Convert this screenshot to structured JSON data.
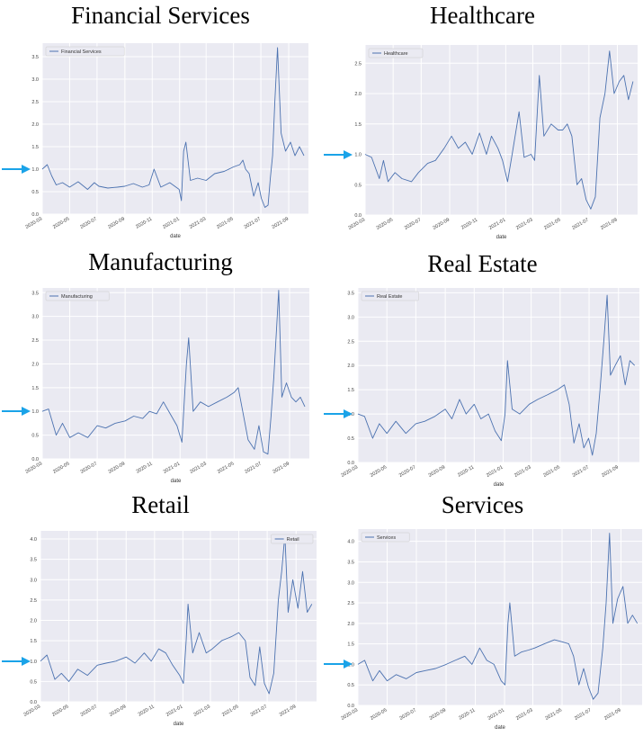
{
  "charts": [
    {
      "type": "line",
      "title": "Financial Services",
      "xlabel": "date",
      "ylabel": "",
      "legend": "Financial Services",
      "legend_position": "top-left",
      "ylim": [
        0,
        3.8
      ],
      "yticks": [
        "0.0",
        "0.5",
        "1.0",
        "1.5",
        "2.0",
        "2.5",
        "3.0",
        "3.5"
      ],
      "xlim": [
        "2020-03-01",
        "2021-10-15"
      ],
      "xticks": [
        "2020-03",
        "2020-05",
        "2020-07",
        "2020-09",
        "2020-11",
        "2021-01",
        "2021-03",
        "2021-05",
        "2021-07",
        "2021-09"
      ],
      "series": [
        {
          "name": "Financial Services",
          "x": [
            "2020-03-01",
            "2020-03-12",
            "2020-03-22",
            "2020-04-01",
            "2020-04-15",
            "2020-05-01",
            "2020-05-20",
            "2020-06-10",
            "2020-06-25",
            "2020-07-05",
            "2020-07-25",
            "2020-08-15",
            "2020-09-01",
            "2020-09-20",
            "2020-10-10",
            "2020-10-25",
            "2020-11-05",
            "2020-11-20",
            "2020-12-10",
            "2020-12-31",
            "2021-01-05",
            "2021-01-10",
            "2021-01-15",
            "2021-01-25",
            "2021-02-10",
            "2021-03-01",
            "2021-03-20",
            "2021-04-10",
            "2021-05-01",
            "2021-05-15",
            "2021-05-22",
            "2021-05-28",
            "2021-06-05",
            "2021-06-15",
            "2021-06-25",
            "2021-07-02",
            "2021-07-10",
            "2021-07-17",
            "2021-07-22",
            "2021-07-27",
            "2021-08-01",
            "2021-08-07",
            "2021-08-15",
            "2021-08-25",
            "2021-09-05",
            "2021-09-15",
            "2021-09-25",
            "2021-10-05"
          ],
          "y": [
            1.0,
            1.1,
            0.85,
            0.65,
            0.7,
            0.6,
            0.72,
            0.55,
            0.7,
            0.62,
            0.58,
            0.6,
            0.62,
            0.68,
            0.6,
            0.65,
            1.0,
            0.6,
            0.7,
            0.55,
            0.3,
            1.4,
            1.6,
            0.75,
            0.8,
            0.75,
            0.9,
            0.95,
            1.05,
            1.1,
            1.2,
            1.0,
            0.9,
            0.4,
            0.7,
            0.35,
            0.15,
            0.2,
            0.8,
            1.3,
            2.5,
            3.7,
            1.8,
            1.4,
            1.6,
            1.3,
            1.5,
            1.3
          ]
        }
      ]
    },
    {
      "type": "line",
      "title": "Healthcare",
      "xlabel": "date",
      "ylabel": "",
      "legend": "Healthcare",
      "legend_position": "top-left",
      "ylim": [
        0,
        2.8
      ],
      "yticks": [
        "0.0",
        "0.5",
        "1.0",
        "1.5",
        "2.0",
        "2.5"
      ],
      "xlim": [
        "2020-03-01",
        "2021-10-15"
      ],
      "xticks": [
        "2020-03",
        "2020-05",
        "2020-07",
        "2020-09",
        "2020-11",
        "2021-01",
        "2021-03",
        "2021-05",
        "2021-07",
        "2021-09"
      ],
      "series": [
        {
          "name": "Healthcare",
          "x": [
            "2020-03-01",
            "2020-03-15",
            "2020-04-01",
            "2020-04-10",
            "2020-04-20",
            "2020-05-05",
            "2020-05-20",
            "2020-06-10",
            "2020-06-25",
            "2020-07-15",
            "2020-08-01",
            "2020-08-20",
            "2020-09-05",
            "2020-09-20",
            "2020-10-05",
            "2020-10-20",
            "2020-11-05",
            "2020-11-20",
            "2020-12-01",
            "2020-12-15",
            "2020-12-25",
            "2021-01-05",
            "2021-01-15",
            "2021-01-30",
            "2021-02-10",
            "2021-02-25",
            "2021-03-05",
            "2021-03-15",
            "2021-03-25",
            "2021-04-10",
            "2021-04-25",
            "2021-05-05",
            "2021-05-15",
            "2021-05-25",
            "2021-06-05",
            "2021-06-15",
            "2021-06-25",
            "2021-07-05",
            "2021-07-15",
            "2021-07-25",
            "2021-08-05",
            "2021-08-15",
            "2021-08-25",
            "2021-09-05",
            "2021-09-15",
            "2021-09-25",
            "2021-10-05"
          ],
          "y": [
            1.0,
            0.95,
            0.6,
            0.9,
            0.55,
            0.7,
            0.6,
            0.55,
            0.7,
            0.85,
            0.9,
            1.1,
            1.3,
            1.1,
            1.2,
            1.0,
            1.35,
            1.0,
            1.3,
            1.1,
            0.9,
            0.55,
            1.0,
            1.7,
            0.95,
            1.0,
            0.9,
            2.3,
            1.3,
            1.5,
            1.4,
            1.4,
            1.5,
            1.3,
            0.5,
            0.6,
            0.25,
            0.1,
            0.3,
            1.6,
            2.0,
            2.7,
            2.0,
            2.2,
            2.3,
            1.9,
            2.2
          ]
        }
      ]
    },
    {
      "type": "line",
      "title": "Manufacturing",
      "xlabel": "date",
      "ylabel": "",
      "legend": "Manufacturing",
      "legend_position": "top-left",
      "ylim": [
        0,
        3.6
      ],
      "yticks": [
        "0.0",
        "0.5",
        "1.0",
        "1.5",
        "2.0",
        "2.5",
        "3.0",
        "3.5"
      ],
      "xlim": [
        "2020-03-01",
        "2021-10-15"
      ],
      "xticks": [
        "2020-03",
        "2020-05",
        "2020-07",
        "2020-09",
        "2020-11",
        "2021-01",
        "2021-03",
        "2021-05",
        "2021-07",
        "2021-09"
      ],
      "series": [
        {
          "name": "Manufacturing",
          "x": [
            "2020-03-01",
            "2020-03-15",
            "2020-04-01",
            "2020-04-15",
            "2020-05-01",
            "2020-05-20",
            "2020-06-10",
            "2020-07-01",
            "2020-07-20",
            "2020-08-10",
            "2020-09-01",
            "2020-09-20",
            "2020-10-10",
            "2020-10-25",
            "2020-11-10",
            "2020-11-25",
            "2020-12-10",
            "2020-12-25",
            "2021-01-05",
            "2021-01-15",
            "2021-01-20",
            "2021-01-30",
            "2021-02-15",
            "2021-03-05",
            "2021-03-25",
            "2021-04-15",
            "2021-05-01",
            "2021-05-10",
            "2021-05-20",
            "2021-06-01",
            "2021-06-15",
            "2021-06-25",
            "2021-07-05",
            "2021-07-15",
            "2021-07-22",
            "2021-07-28",
            "2021-08-03",
            "2021-08-08",
            "2021-08-15",
            "2021-08-25",
            "2021-09-05",
            "2021-09-15",
            "2021-09-25",
            "2021-10-05"
          ],
          "y": [
            1.0,
            1.05,
            0.5,
            0.75,
            0.45,
            0.55,
            0.45,
            0.7,
            0.65,
            0.75,
            0.8,
            0.9,
            0.85,
            1.0,
            0.95,
            1.2,
            0.95,
            0.7,
            0.35,
            2.0,
            2.55,
            1.0,
            1.2,
            1.1,
            1.2,
            1.3,
            1.4,
            1.5,
            1.0,
            0.4,
            0.2,
            0.7,
            0.15,
            0.1,
            0.9,
            1.7,
            2.7,
            3.55,
            1.3,
            1.6,
            1.3,
            1.2,
            1.3,
            1.1
          ]
        }
      ]
    },
    {
      "type": "line",
      "title": "Real Estate",
      "xlabel": "date",
      "ylabel": "",
      "legend": "Real Estate",
      "legend_position": "top-left",
      "ylim": [
        0,
        3.6
      ],
      "yticks": [
        "0.0",
        "0.5",
        "1.0",
        "1.5",
        "2.0",
        "2.5",
        "3.0",
        "3.5"
      ],
      "xlim": [
        "2020-03-01",
        "2021-10-15"
      ],
      "xticks": [
        "2020-03",
        "2020-05",
        "2020-07",
        "2020-09",
        "2020-11",
        "2021-01",
        "2021-03",
        "2021-05",
        "2021-07",
        "2021-09"
      ],
      "series": [
        {
          "name": "Real Estate",
          "x": [
            "2020-03-01",
            "2020-03-15",
            "2020-04-01",
            "2020-04-15",
            "2020-05-01",
            "2020-05-20",
            "2020-06-10",
            "2020-07-01",
            "2020-07-20",
            "2020-08-10",
            "2020-09-01",
            "2020-09-15",
            "2020-10-01",
            "2020-10-15",
            "2020-11-01",
            "2020-11-15",
            "2020-12-01",
            "2020-12-15",
            "2020-12-28",
            "2021-01-05",
            "2021-01-10",
            "2021-01-20",
            "2021-02-05",
            "2021-02-25",
            "2021-03-15",
            "2021-04-05",
            "2021-04-25",
            "2021-05-10",
            "2021-05-20",
            "2021-05-30",
            "2021-06-10",
            "2021-06-20",
            "2021-06-30",
            "2021-07-08",
            "2021-07-16",
            "2021-07-24",
            "2021-08-01",
            "2021-08-08",
            "2021-08-15",
            "2021-08-25",
            "2021-09-05",
            "2021-09-15",
            "2021-09-25",
            "2021-10-05"
          ],
          "y": [
            1.0,
            0.95,
            0.5,
            0.8,
            0.6,
            0.85,
            0.6,
            0.8,
            0.85,
            0.95,
            1.1,
            0.9,
            1.3,
            1.0,
            1.2,
            0.9,
            1.0,
            0.65,
            0.45,
            1.0,
            2.1,
            1.1,
            1.0,
            1.2,
            1.3,
            1.4,
            1.5,
            1.6,
            1.2,
            0.4,
            0.8,
            0.3,
            0.5,
            0.15,
            0.6,
            1.5,
            2.5,
            3.45,
            1.8,
            2.0,
            2.2,
            1.6,
            2.1,
            2.0
          ]
        }
      ]
    },
    {
      "type": "line",
      "title": "Retail",
      "xlabel": "date",
      "ylabel": "",
      "legend": "Retail",
      "legend_position": "top-right",
      "ylim": [
        0,
        4.2
      ],
      "yticks": [
        "0.0",
        "0.5",
        "1.0",
        "1.5",
        "2.0",
        "2.5",
        "3.0",
        "3.5",
        "4.0"
      ],
      "xlim": [
        "2020-03-01",
        "2021-10-15"
      ],
      "xticks": [
        "2020-03",
        "2020-05",
        "2020-07",
        "2020-09",
        "2020-11",
        "2021-01",
        "2021-03",
        "2021-05",
        "2021-07",
        "2021-09"
      ],
      "series": [
        {
          "name": "Retail",
          "x": [
            "2020-03-01",
            "2020-03-15",
            "2020-04-01",
            "2020-04-15",
            "2020-05-01",
            "2020-05-20",
            "2020-06-10",
            "2020-07-01",
            "2020-07-20",
            "2020-08-10",
            "2020-09-01",
            "2020-09-20",
            "2020-10-10",
            "2020-10-25",
            "2020-11-10",
            "2020-11-25",
            "2020-12-10",
            "2020-12-25",
            "2021-01-02",
            "2021-01-08",
            "2021-01-12",
            "2021-01-22",
            "2021-02-05",
            "2021-02-20",
            "2021-03-05",
            "2021-03-25",
            "2021-04-15",
            "2021-05-01",
            "2021-05-15",
            "2021-05-25",
            "2021-06-05",
            "2021-06-15",
            "2021-06-25",
            "2021-07-05",
            "2021-07-15",
            "2021-07-25",
            "2021-08-01",
            "2021-08-08",
            "2021-08-15",
            "2021-08-25",
            "2021-09-05",
            "2021-09-15",
            "2021-09-25",
            "2021-10-05"
          ],
          "y": [
            1.0,
            1.15,
            0.55,
            0.7,
            0.5,
            0.8,
            0.65,
            0.9,
            0.95,
            1.0,
            1.1,
            0.95,
            1.2,
            1.0,
            1.3,
            1.2,
            0.9,
            0.65,
            0.45,
            1.5,
            2.4,
            1.2,
            1.7,
            1.2,
            1.3,
            1.5,
            1.6,
            1.7,
            1.5,
            0.6,
            0.4,
            1.35,
            0.45,
            0.2,
            0.7,
            2.5,
            3.2,
            4.1,
            2.2,
            3.0,
            2.3,
            3.2,
            2.2,
            2.4
          ]
        }
      ]
    },
    {
      "type": "line",
      "title": "Services",
      "xlabel": "date",
      "ylabel": "",
      "legend": "Services",
      "legend_position": "top-left",
      "ylim": [
        0,
        4.3
      ],
      "yticks": [
        "0.0",
        "0.5",
        "1.0",
        "1.5",
        "2.0",
        "2.5",
        "3.0",
        "3.5",
        "4.0"
      ],
      "xlim": [
        "2020-03-01",
        "2021-10-15"
      ],
      "xticks": [
        "2020-03",
        "2020-05",
        "2020-07",
        "2020-09",
        "2020-11",
        "2021-01",
        "2021-03",
        "2021-05",
        "2021-07",
        "2021-09"
      ],
      "series": [
        {
          "name": "Services",
          "x": [
            "2020-03-01",
            "2020-03-15",
            "2020-04-01",
            "2020-04-15",
            "2020-05-01",
            "2020-05-20",
            "2020-06-10",
            "2020-07-01",
            "2020-07-20",
            "2020-08-10",
            "2020-09-01",
            "2020-09-20",
            "2020-10-10",
            "2020-10-25",
            "2020-11-10",
            "2020-11-25",
            "2020-12-10",
            "2020-12-25",
            "2021-01-02",
            "2021-01-08",
            "2021-01-12",
            "2021-01-22",
            "2021-02-05",
            "2021-02-20",
            "2021-03-05",
            "2021-03-25",
            "2021-04-15",
            "2021-05-01",
            "2021-05-15",
            "2021-05-25",
            "2021-06-05",
            "2021-06-15",
            "2021-06-25",
            "2021-07-05",
            "2021-07-15",
            "2021-07-25",
            "2021-08-01",
            "2021-08-08",
            "2021-08-15",
            "2021-08-25",
            "2021-09-05",
            "2021-09-15",
            "2021-09-25",
            "2021-10-05"
          ],
          "y": [
            1.0,
            1.1,
            0.6,
            0.85,
            0.6,
            0.75,
            0.65,
            0.8,
            0.85,
            0.9,
            1.0,
            1.1,
            1.2,
            1.0,
            1.4,
            1.1,
            1.0,
            0.6,
            0.5,
            2.0,
            2.5,
            1.2,
            1.3,
            1.35,
            1.4,
            1.5,
            1.6,
            1.55,
            1.5,
            1.2,
            0.5,
            0.9,
            0.45,
            0.15,
            0.3,
            1.4,
            2.5,
            4.2,
            2.0,
            2.6,
            2.9,
            2.0,
            2.2,
            2.0
          ]
        }
      ]
    }
  ]
}
